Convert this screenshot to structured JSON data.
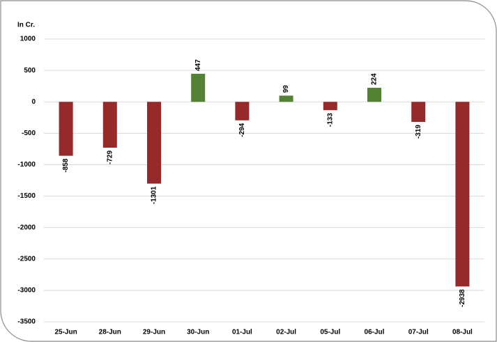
{
  "chart_data": {
    "type": "bar",
    "y_label": "In Cr.",
    "categories": [
      "25-Jun",
      "28-Jun",
      "29-Jun",
      "30-Jun",
      "01-Jul",
      "02-Jul",
      "05-Jul",
      "06-Jul",
      "07-Jul",
      "08-Jul"
    ],
    "values": [
      -858,
      -729,
      -1301,
      447,
      -294,
      99,
      -133,
      224,
      -319,
      -2938
    ],
    "color_positive": "#548235",
    "color_negative": "#962a2a",
    "ylim": [
      -3500,
      1000
    ],
    "yticks": [
      -3500,
      -3000,
      -2500,
      -2000,
      -1500,
      -1000,
      -500,
      0,
      500,
      1000
    ],
    "grid": true
  }
}
